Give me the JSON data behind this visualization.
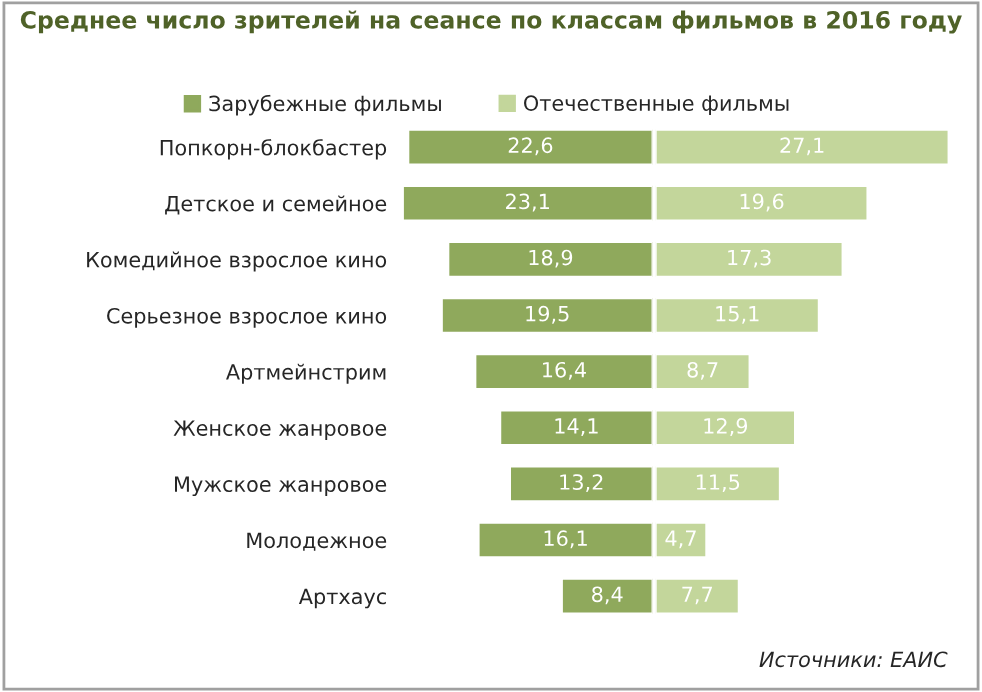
{
  "chart_data": [
    {
      "type": "bar",
      "orientation": "horizontal",
      "title": "Среднее число зрителей на сеансе по классам фильмов в 2016 году",
      "categories": [
        "Попкорн-блокбастер",
        "Детское и семейное",
        "Комедийное взрослое кино",
        "Серьезное взрослое кино",
        "Артмейнстрим",
        "Женское жанровое",
        "Мужское жанровое",
        "Молодежное",
        "Артхаус"
      ],
      "series": [
        {
          "name": "Зарубежные фильмы",
          "color": "#8fa95c",
          "values": [
            22.6,
            23.1,
            18.9,
            19.5,
            16.4,
            14.1,
            13.2,
            16.1,
            8.4
          ],
          "value_labels": [
            "22,6",
            "23,1",
            "18,9",
            "19,5",
            "16,4",
            "14,1",
            "13,2",
            "16,1",
            "8,4"
          ]
        }
      ],
      "legend": "top",
      "tick_labels": "y",
      "annotations": [
        "Источники: ЕАИС"
      ]
    },
    {
      "type": "bar",
      "orientation": "horizontal",
      "categories": [
        null,
        null,
        null,
        null,
        null,
        null,
        null,
        null,
        null
      ],
      "series": [
        {
          "name": "Отечественные фильмы",
          "color": "#c3d69b",
          "values": [
            27.1,
            19.6,
            17.3,
            15.1,
            8.7,
            12.9,
            11.5,
            4.7,
            7.7
          ],
          "value_labels": [
            "27,1",
            "19,6",
            "17,3",
            "15,1",
            "8,7",
            "12,9",
            "11,5",
            "4,7",
            "7,7"
          ]
        }
      ],
      "legend": "top",
      "tick_labels": false
    }
  ]
}
